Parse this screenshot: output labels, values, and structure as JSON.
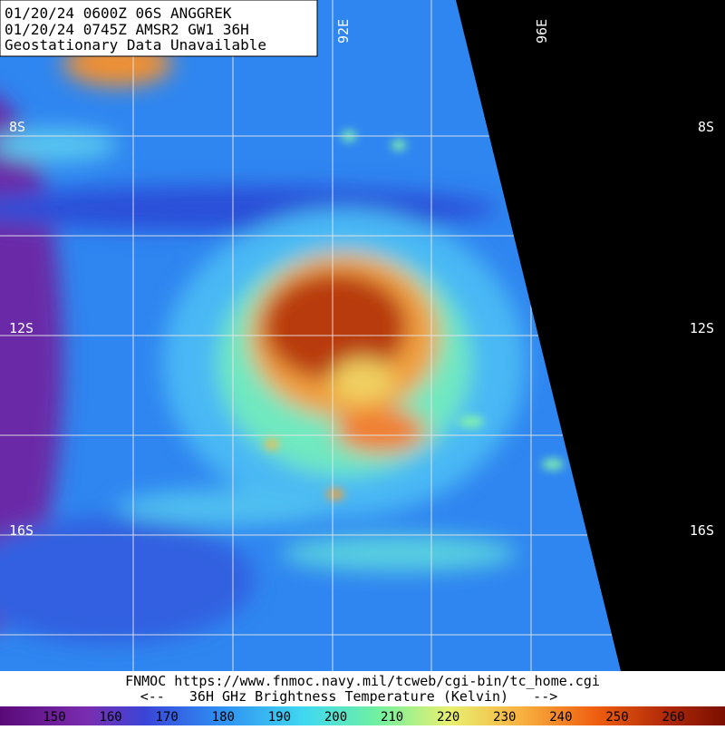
{
  "header": {
    "lines": [
      "01/20/24 0600Z  06S ANGGREK",
      "01/20/24 0745Z  AMSR2 GW1 36H",
      "Geostationary Data Unavailable"
    ]
  },
  "longitude_labels": [
    "92E",
    "96E"
  ],
  "latitude_labels": [
    "8S",
    "12S",
    "16S"
  ],
  "footer": {
    "source": "FNMOC https://www.fnmoc.navy.mil/tcweb/cgi-bin/tc_home.cgi",
    "legend_title": "<--   36H GHz Brightness Temperature (Kelvin)   -->"
  },
  "colorbar": {
    "labels": [
      "150",
      "160",
      "170",
      "180",
      "190",
      "200",
      "210",
      "220",
      "230",
      "240",
      "250",
      "260"
    ]
  }
}
